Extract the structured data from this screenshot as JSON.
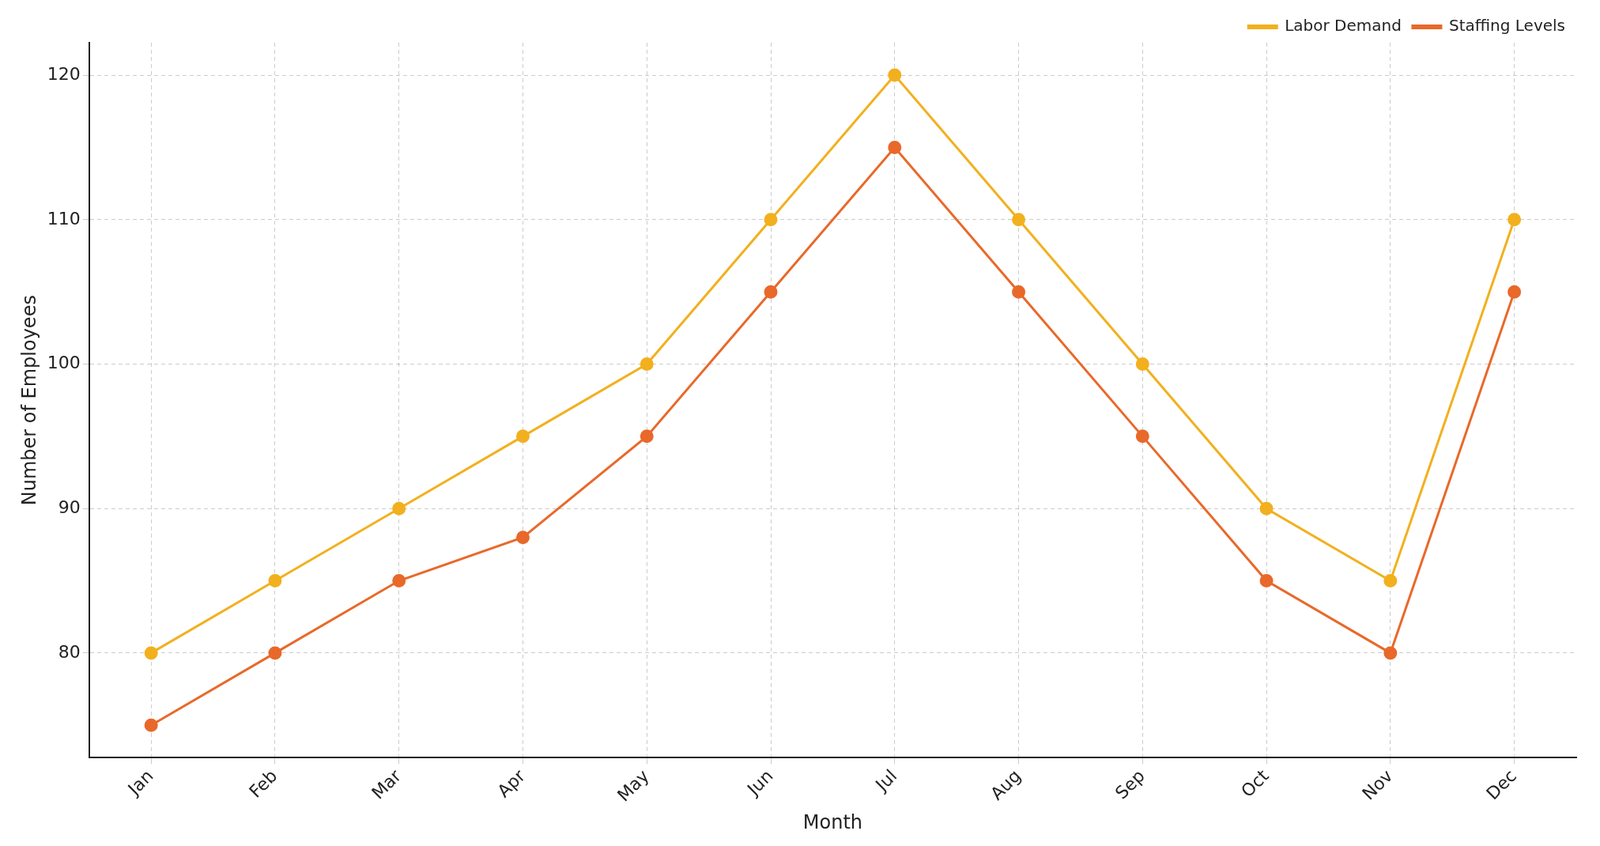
{
  "chart_data": {
    "type": "line",
    "x_label": "Month",
    "y_label": "Number of Employees",
    "categories": [
      "Jan",
      "Feb",
      "Mar",
      "Apr",
      "May",
      "Jun",
      "Jul",
      "Aug",
      "Sep",
      "Oct",
      "Nov",
      "Dec"
    ],
    "series": [
      {
        "name": "Labor Demand",
        "color": "#f2b01e",
        "marker": "circle",
        "line_style": "solid",
        "values": [
          80,
          85,
          90,
          95,
          100,
          110,
          120,
          110,
          100,
          90,
          85,
          110
        ]
      },
      {
        "name": "Staffing Levels",
        "color": "#e8692a",
        "marker": "circle",
        "line_style": "solid",
        "values": [
          75,
          80,
          85,
          88,
          95,
          105,
          115,
          105,
          95,
          85,
          80,
          105
        ]
      }
    ],
    "ylim": [
      72.75,
      122.25
    ],
    "yticks": [
      80,
      90,
      100,
      110,
      120
    ],
    "grid": true,
    "legend": "upper right"
  }
}
